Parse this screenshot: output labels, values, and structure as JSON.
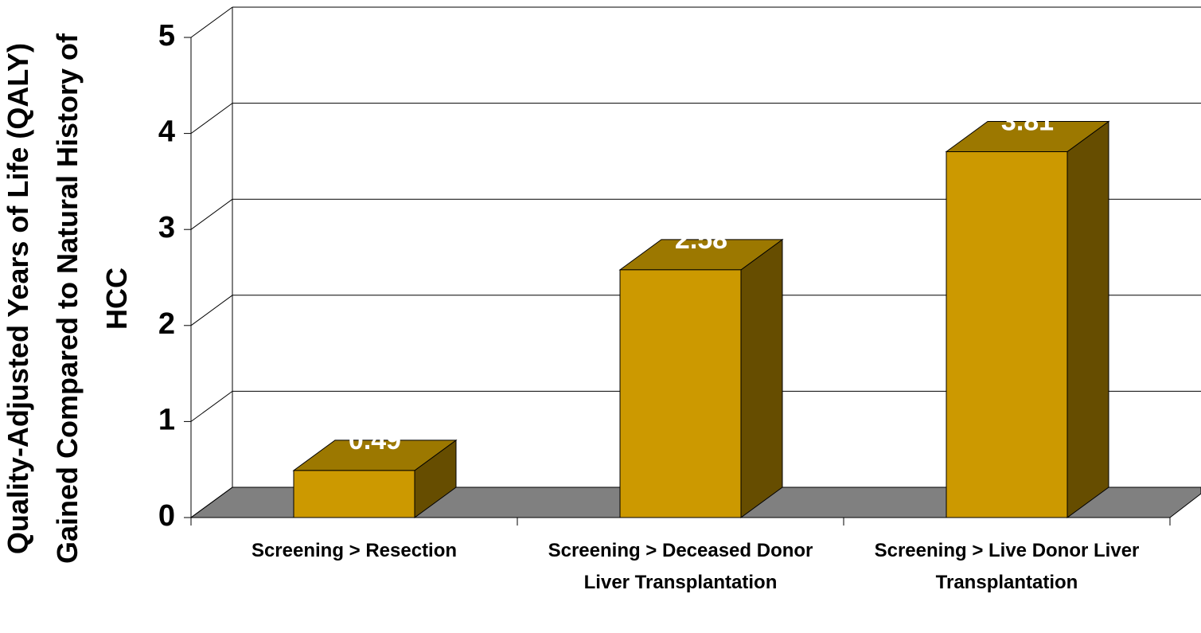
{
  "chart_data": {
    "type": "bar3d",
    "y_label": "Quality-Adjusted Years of Life (QALY) Gained Compared to Natural History of HCC",
    "categories": [
      "Screening > Resection",
      "Screening > Deceased Donor Liver Transplantation",
      "Screening > Live Donor Liver Transplantation"
    ],
    "values": [
      0.49,
      2.58,
      3.81
    ],
    "color": "#cc9900",
    "ylim": [
      0,
      5
    ],
    "yticks": [
      0,
      1,
      2,
      3,
      4,
      5
    ],
    "grid": true
  }
}
